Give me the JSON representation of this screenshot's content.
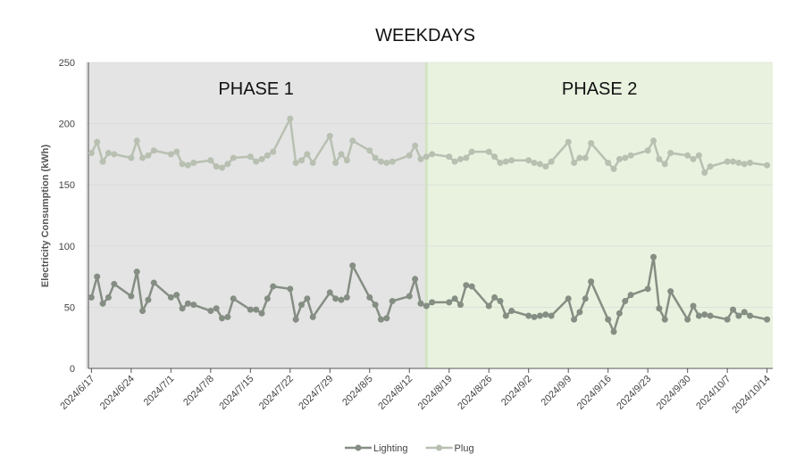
{
  "chart_data": {
    "type": "line",
    "title": "WEEKDAYS",
    "y_label": "Electricity Consumption (kWh)",
    "x": [
      "2024/6/17",
      "2024/6/18",
      "2024/6/19",
      "2024/6/20",
      "2024/6/21",
      "2024/6/24",
      "2024/6/25",
      "2024/6/26",
      "2024/6/27",
      "2024/6/28",
      "2024/7/1",
      "2024/7/2",
      "2024/7/3",
      "2024/7/4",
      "2024/7/5",
      "2024/7/8",
      "2024/7/9",
      "2024/7/10",
      "2024/7/11",
      "2024/7/12",
      "2024/7/15",
      "2024/7/16",
      "2024/7/17",
      "2024/7/18",
      "2024/7/19",
      "2024/7/22",
      "2024/7/23",
      "2024/7/24",
      "2024/7/25",
      "2024/7/26",
      "2024/7/29",
      "2024/7/30",
      "2024/7/31",
      "2024/8/1",
      "2024/8/2",
      "2024/8/5",
      "2024/8/6",
      "2024/8/7",
      "2024/8/8",
      "2024/8/9",
      "2024/8/12",
      "2024/8/13",
      "2024/8/14",
      "2024/8/15",
      "2024/8/16",
      "2024/8/19",
      "2024/8/20",
      "2024/8/21",
      "2024/8/22",
      "2024/8/23",
      "2024/8/26",
      "2024/8/27",
      "2024/8/28",
      "2024/8/29",
      "2024/8/30",
      "2024/9/2",
      "2024/9/3",
      "2024/9/4",
      "2024/9/5",
      "2024/9/6",
      "2024/9/9",
      "2024/9/10",
      "2024/9/11",
      "2024/9/12",
      "2024/9/13",
      "2024/9/16",
      "2024/9/17",
      "2024/9/18",
      "2024/9/19",
      "2024/9/20",
      "2024/9/23",
      "2024/9/24",
      "2024/9/25",
      "2024/9/26",
      "2024/9/27",
      "2024/9/30",
      "2024/10/1",
      "2024/10/2",
      "2024/10/3",
      "2024/10/4",
      "2024/10/7",
      "2024/10/8",
      "2024/10/9",
      "2024/10/10",
      "2024/10/11",
      "2024/10/14"
    ],
    "series": [
      {
        "name": "Lighting",
        "color": "#858e83",
        "values": [
          58,
          75,
          53,
          58,
          69,
          59,
          79,
          47,
          56,
          70,
          58,
          60,
          49,
          53,
          52,
          47,
          49,
          41,
          42,
          57,
          48,
          48,
          45,
          57,
          67,
          65,
          40,
          52,
          57,
          42,
          62,
          57,
          56,
          58,
          84,
          58,
          52,
          40,
          41,
          55,
          59,
          73,
          53,
          51,
          54,
          54,
          57,
          52,
          68,
          67,
          51,
          58,
          55,
          43,
          47,
          43,
          42,
          43,
          44,
          43,
          57,
          40,
          46,
          57,
          71,
          40,
          30,
          45,
          55,
          60,
          65,
          91,
          49,
          40,
          63,
          40,
          51,
          43,
          44,
          43,
          40,
          48,
          43,
          46,
          43,
          40
        ]
      },
      {
        "name": "Plug",
        "color": "#b8c0b2",
        "values": [
          176,
          185,
          169,
          176,
          175,
          172,
          186,
          172,
          174,
          178,
          175,
          177,
          167,
          166,
          168,
          170,
          165,
          164,
          167,
          172,
          173,
          169,
          171,
          174,
          177,
          204,
          168,
          170,
          175,
          168,
          190,
          168,
          175,
          170,
          186,
          178,
          172,
          169,
          168,
          169,
          174,
          182,
          171,
          173,
          175,
          173,
          169,
          171,
          172,
          177,
          177,
          173,
          168,
          169,
          170,
          170,
          168,
          167,
          165,
          169,
          185,
          168,
          172,
          172,
          184,
          168,
          163,
          171,
          172,
          174,
          178,
          186,
          171,
          167,
          176,
          174,
          171,
          174,
          160,
          165,
          169,
          169,
          168,
          167,
          168,
          166
        ]
      }
    ],
    "xlim": [
      "2024/6/16",
      "2024/10/15"
    ],
    "xticks": [
      "2024/6/17",
      "2024/6/24",
      "2024/7/1",
      "2024/7/8",
      "2024/7/15",
      "2024/7/22",
      "2024/7/29",
      "2024/8/5",
      "2024/8/12",
      "2024/8/19",
      "2024/8/26",
      "2024/9/2",
      "2024/9/9",
      "2024/9/16",
      "2024/9/23",
      "2024/9/30",
      "2024/10/7",
      "2024/10/14"
    ],
    "ylim": [
      0,
      250
    ],
    "yticks": [
      0,
      50,
      100,
      150,
      200,
      250
    ],
    "grid": true,
    "legend": "bottom",
    "phases": [
      {
        "label": "PHASE 1",
        "start": "2024/6/16",
        "end": "2024/8/15",
        "color": "#e4e4e4"
      },
      {
        "label": "PHASE 2",
        "start": "2024/8/15",
        "end": "2024/10/15",
        "color": "#e9f2df"
      }
    ]
  }
}
